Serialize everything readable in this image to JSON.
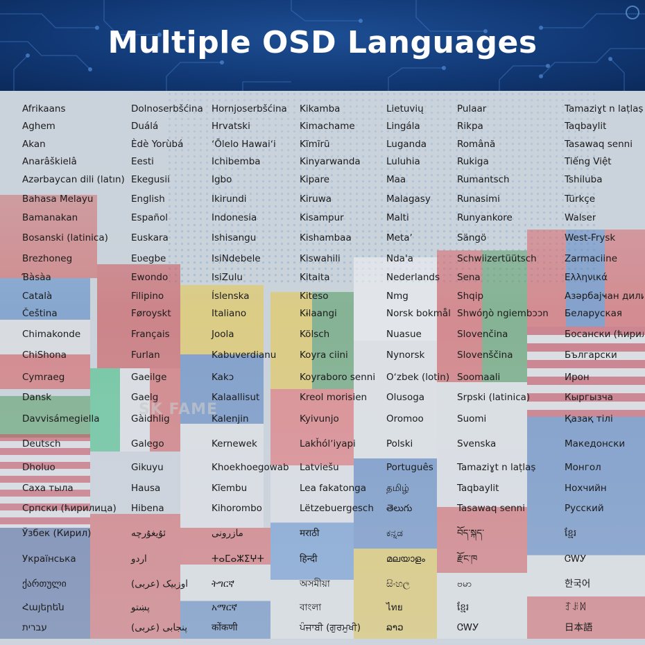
{
  "title": "Multiple OSD Languages",
  "watermark": "SK FAME",
  "columns": [
    [
      "Afrikaans",
      "Aghem",
      "Akan",
      "Anarâškielâ",
      "Azərbaycan dili (latın)",
      "Bahasa Melayu",
      "Bamanakan",
      "Bosanski (latinica)",
      "Brezhoneg",
      "Ɓàsàa",
      "Català",
      "Čeština",
      "Chimakonde",
      "ChiShona",
      "Cymraeg",
      "Dansk",
      "Davvisámegiella",
      "Deutsch",
      "Dholuo",
      "Саха тыла",
      "Српски (ћирилица)",
      "Ўзбек (Кирил)",
      "Українська",
      "ქართული",
      "Հայերեն",
      "עברית"
    ],
    [
      "Dolnoserbšćina",
      "Duálá",
      "Èdè Yorùbá",
      "Eesti",
      "Ekegusii",
      "English",
      "Español",
      "Euskara",
      "Eʋegbe",
      "Ewondo",
      "Filipino",
      "Føroyskt",
      "Français",
      "Furlan",
      "Gaeilge",
      "Gaelg",
      "Gàidhlig",
      "Galego",
      "Gikuyu",
      "Hausa",
      "Hibena",
      "ئۇيغۇرچە",
      "اردو",
      "اوزبیک (عربی)",
      "پښتو",
      "پنجابی (عربی)"
    ],
    [
      "Hornjoserbšćina",
      "Hrvatski",
      "ʻŌlelo Hawaiʻi",
      "Ichibemba",
      "Igbo",
      "Ikirundi",
      "Indonesia",
      "Ishisangu",
      "IsiNdebele",
      "IsiZulu",
      "Íslenska",
      "Italiano",
      "Joola",
      "Kabuverdianu",
      "Kakɔ",
      "Kalaallisut",
      "Kalenjin",
      "Kernewek",
      "Khoekhoegowab",
      "Kĩembu",
      "Kihorombo",
      "مازرونی",
      "ⵜⴰⵎⴰⵣⵉⵖⵜ",
      "ትግርኛ",
      "አማርኛ",
      "कोंकणी"
    ],
    [
      "Kikamba",
      "Kimachame",
      "Kĩmĩrũ",
      "Kinyarwanda",
      "Kipare",
      "Kiruwa",
      "Kisampur",
      "Kishambaa",
      "Kiswahili",
      "Kitaita",
      "Kiteso",
      "Kɨlaangi",
      "Kölsch",
      "Koyra ciini",
      "Koyraboro senni",
      "Kreol morisien",
      "Kyivunjo",
      "Lakȟólʼiyapi",
      "Latviešu",
      "Lea fakatonga",
      "Lëtzebuergesch",
      "मराठी",
      "हिन्दी",
      "অসমীয়া",
      "বাংলা",
      "ਪੰਜਾਬੀ (ਗੁਰਮੁਖੀ)"
    ],
    [
      "Lietuvių",
      "Lingála",
      "Luganda",
      "Luluhia",
      "Maa",
      "Malagasy",
      "Malti",
      "Metaʼ",
      "Ndaꞌa",
      "Nederlands",
      "Nmg",
      "Norsk bokmål",
      "Nuasue",
      "Nynorsk",
      "Oʻzbek (lotin)",
      "Olusoga",
      "Oromoo",
      "Polski",
      "Português",
      "தமிழ்",
      "తెలుగు",
      "ಕನ್ನಡ",
      "മലയാളം",
      "සිංහල",
      "ไทย",
      "ລາວ"
    ],
    [
      "Pulaar",
      "Rikpa",
      "Română",
      "Rukiga",
      "Rumantsch",
      "Runasimi",
      "Runyankore",
      "Sängö",
      "Schwiizertüütsch",
      "Sena",
      "Shqip",
      "Shwóŋò ngiembɔɔn",
      "Slovenčina",
      "Slovenščina",
      "Soomaali",
      "Srpski (latinica)",
      "Suomi",
      "Svenska",
      "Tamaziɣt n laṭlaṣ",
      "Taqbaylit",
      "Tasawaq senni",
      "བོད་སྐད་",
      "རྫོང་ཁ",
      "ဗမာ",
      "ខ្មែរ",
      "ᏣᎳᎩ"
    ],
    [
      "Tamaziɣt n laṭlaṣ",
      "Taqbaylit",
      "Tasawaq senni",
      "Tiếng Việt",
      "Tshiluba",
      "Türkçe",
      "Walser",
      "West-Frysk",
      "Zarmaciine",
      "Ελληνικά",
      "Азәрбајҹан дили (кирил)",
      "Беларуская",
      "Босански (ћирилица)",
      "Български",
      "Ирон",
      "Кыргызча",
      "Қазақ тілі",
      "Македонски",
      "Монгол",
      "Нохчийн",
      "Русский",
      "ខ្មែរ",
      "ᏣᎳᎩ",
      "한국어",
      "ꆈꌠꉙ",
      "日本語"
    ]
  ],
  "colors": {
    "header_bg": "#123a77",
    "title_text": "#ffffff",
    "cell_text": "#1b1b1b"
  }
}
